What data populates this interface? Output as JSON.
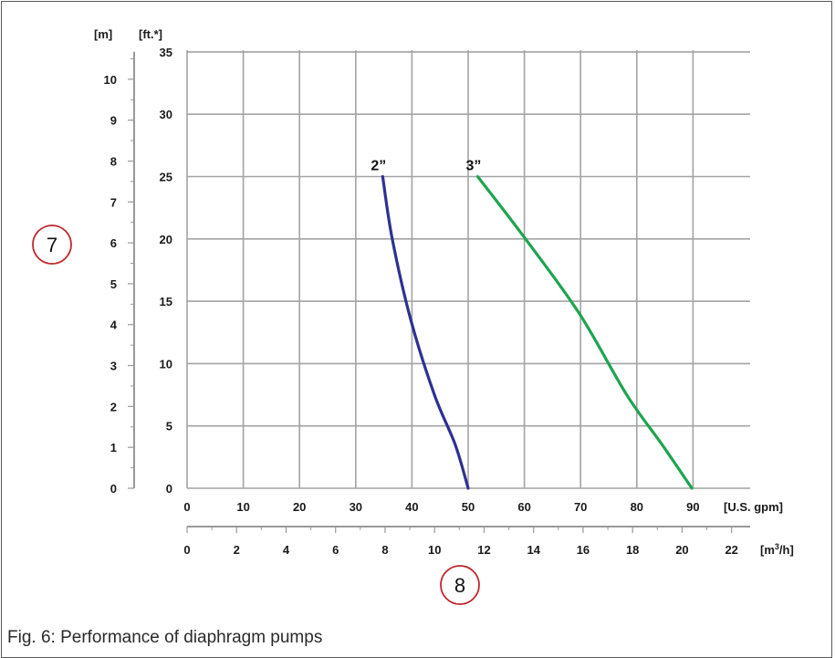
{
  "caption": "Fig. 6: Performance of diaphragm pumps",
  "callouts": {
    "left": "7",
    "bottom": "8"
  },
  "colors": {
    "grid": "#a3a3a3",
    "series_2in": "#2e3192",
    "series_3in": "#1fa450",
    "callout": "#c1272d"
  },
  "chart_data": {
    "type": "line",
    "x_primary": {
      "unit": "[U.S. gpm]",
      "range": [
        0,
        90
      ],
      "ticks": [
        "0",
        "10",
        "20",
        "30",
        "40",
        "50",
        "60",
        "70",
        "80",
        "90"
      ]
    },
    "x_secondary": {
      "unit": "[m3/h]",
      "unit_main": "[m",
      "unit_sup": "3",
      "unit_tail": "/h]",
      "range": [
        0,
        22.7
      ],
      "ticks": [
        "0",
        "2",
        "4",
        "6",
        "8",
        "10",
        "12",
        "14",
        "16",
        "18",
        "20",
        "22"
      ]
    },
    "y_primary": {
      "unit": "[ft.*]",
      "range": [
        0,
        35
      ],
      "ticks": [
        "0",
        "5",
        "10",
        "15",
        "20",
        "25",
        "30",
        "35"
      ]
    },
    "y_secondary": {
      "unit": "[m]",
      "range": [
        0,
        10.67
      ],
      "ticks": [
        "0",
        "1",
        "2",
        "3",
        "4",
        "5",
        "6",
        "7",
        "8",
        "9",
        "10"
      ]
    },
    "grid": true,
    "series": [
      {
        "name": "2”",
        "x": [
          34.8,
          36.5,
          39.8,
          44.0,
          47.7,
          50.0
        ],
        "y": [
          25,
          20,
          13.5,
          7.5,
          3.5,
          0
        ]
      },
      {
        "name": "3”",
        "x": [
          51.7,
          60.2,
          69.8,
          78.2,
          84.5,
          89.8
        ],
        "y": [
          25,
          20,
          14,
          7.5,
          3.5,
          0
        ]
      }
    ]
  }
}
